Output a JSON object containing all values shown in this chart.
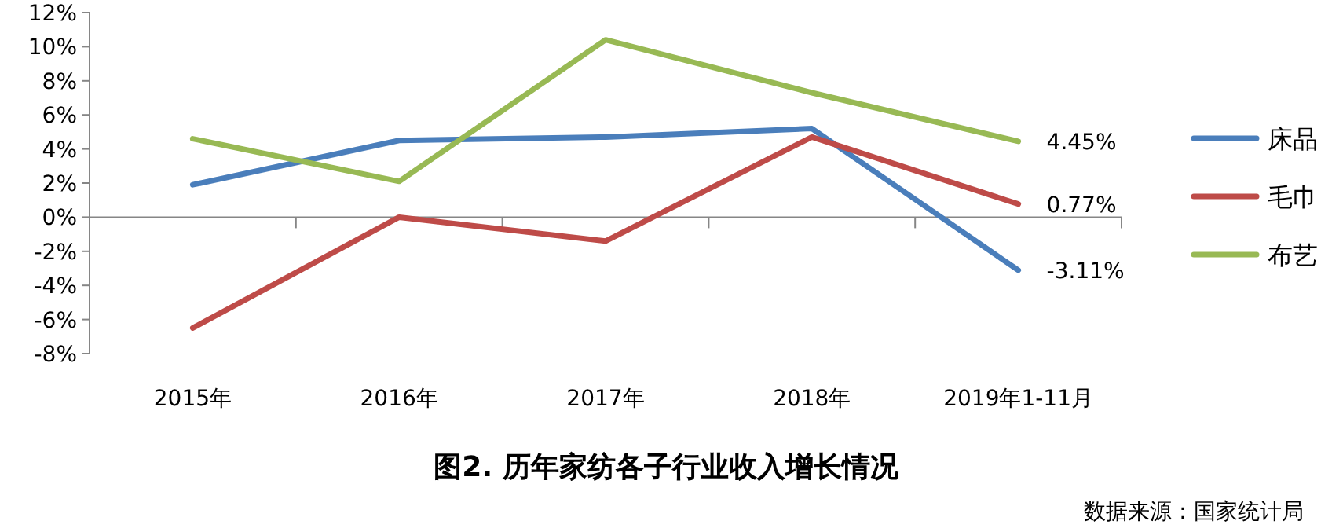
{
  "chart_data": {
    "type": "line",
    "title": "图2. 历年家纺各子行业收入增长情况",
    "annotations": [
      "数据来源：国家统计局"
    ],
    "categories": [
      "2015年",
      "2016年",
      "2017年",
      "2018年",
      "2019年1-11月"
    ],
    "ylim": [
      -8,
      12
    ],
    "yticks": [
      {
        "value": -8,
        "label": "-8%"
      },
      {
        "value": -6,
        "label": "-6%"
      },
      {
        "value": -4,
        "label": "-4%"
      },
      {
        "value": -2,
        "label": "-2%"
      },
      {
        "value": 0,
        "label": "0%"
      },
      {
        "value": 2,
        "label": "2%"
      },
      {
        "value": 4,
        "label": "4%"
      },
      {
        "value": 6,
        "label": "6%"
      },
      {
        "value": 8,
        "label": "8%"
      },
      {
        "value": 10,
        "label": "10%"
      },
      {
        "value": 12,
        "label": "12%"
      }
    ],
    "legend": "right",
    "marker": "none",
    "line_style": "solid",
    "series": [
      {
        "name": "床品",
        "color": "#4a7ebb",
        "values": [
          1.9,
          4.5,
          4.7,
          5.2,
          -3.11
        ],
        "value_labels": [
          null,
          null,
          null,
          null,
          "-3.11%"
        ]
      },
      {
        "name": "毛巾",
        "color": "#be4b48",
        "values": [
          -6.5,
          0,
          -1.4,
          4.7,
          0.77
        ],
        "value_labels": [
          null,
          null,
          null,
          null,
          "0.77%"
        ]
      },
      {
        "name": "布艺",
        "color": "#98b954",
        "values": [
          4.6,
          2.1,
          10.4,
          7.3,
          4.45
        ],
        "value_labels": [
          null,
          null,
          null,
          null,
          "4.45%"
        ]
      }
    ]
  }
}
